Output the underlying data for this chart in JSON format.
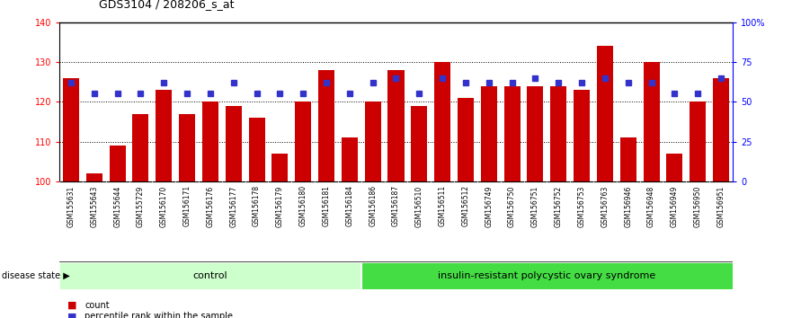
{
  "title": "GDS3104 / 208206_s_at",
  "samples": [
    "GSM155631",
    "GSM155643",
    "GSM155644",
    "GSM155729",
    "GSM156170",
    "GSM156171",
    "GSM156176",
    "GSM156177",
    "GSM156178",
    "GSM156179",
    "GSM156180",
    "GSM156181",
    "GSM156184",
    "GSM156186",
    "GSM156187",
    "GSM156510",
    "GSM156511",
    "GSM156512",
    "GSM156749",
    "GSM156750",
    "GSM156751",
    "GSM156752",
    "GSM156753",
    "GSM156763",
    "GSM156946",
    "GSM156948",
    "GSM156949",
    "GSM156950",
    "GSM156951"
  ],
  "bar_values": [
    126,
    102,
    109,
    117,
    123,
    117,
    120,
    119,
    116,
    107,
    120,
    128,
    111,
    120,
    128,
    119,
    130,
    121,
    124,
    124,
    124,
    124,
    123,
    134,
    111,
    130,
    107,
    120,
    126
  ],
  "percentile_values": [
    62,
    55,
    55,
    55,
    62,
    55,
    55,
    62,
    55,
    55,
    55,
    62,
    55,
    62,
    65,
    55,
    65,
    62,
    62,
    62,
    65,
    62,
    62,
    65,
    62,
    62,
    55,
    55,
    65
  ],
  "bar_color": "#cc0000",
  "dot_color": "#3333cc",
  "ylim_left": [
    100,
    140
  ],
  "ylim_right": [
    0,
    100
  ],
  "yticks_left": [
    100,
    110,
    120,
    130,
    140
  ],
  "yticks_right": [
    0,
    25,
    50,
    75,
    100
  ],
  "ytick_labels_right": [
    "0",
    "25",
    "50",
    "75",
    "100%"
  ],
  "group1_label": "control",
  "group2_label": "insulin-resistant polycystic ovary syndrome",
  "group1_count": 13,
  "group2_count": 16,
  "disease_state_label": "disease state",
  "legend_count_label": "count",
  "legend_percentile_label": "percentile rank within the sample",
  "group1_color": "#ccffcc",
  "group2_color": "#44dd44",
  "xticklabel_bg": "#c8c8c8",
  "separator_color": "#333333"
}
